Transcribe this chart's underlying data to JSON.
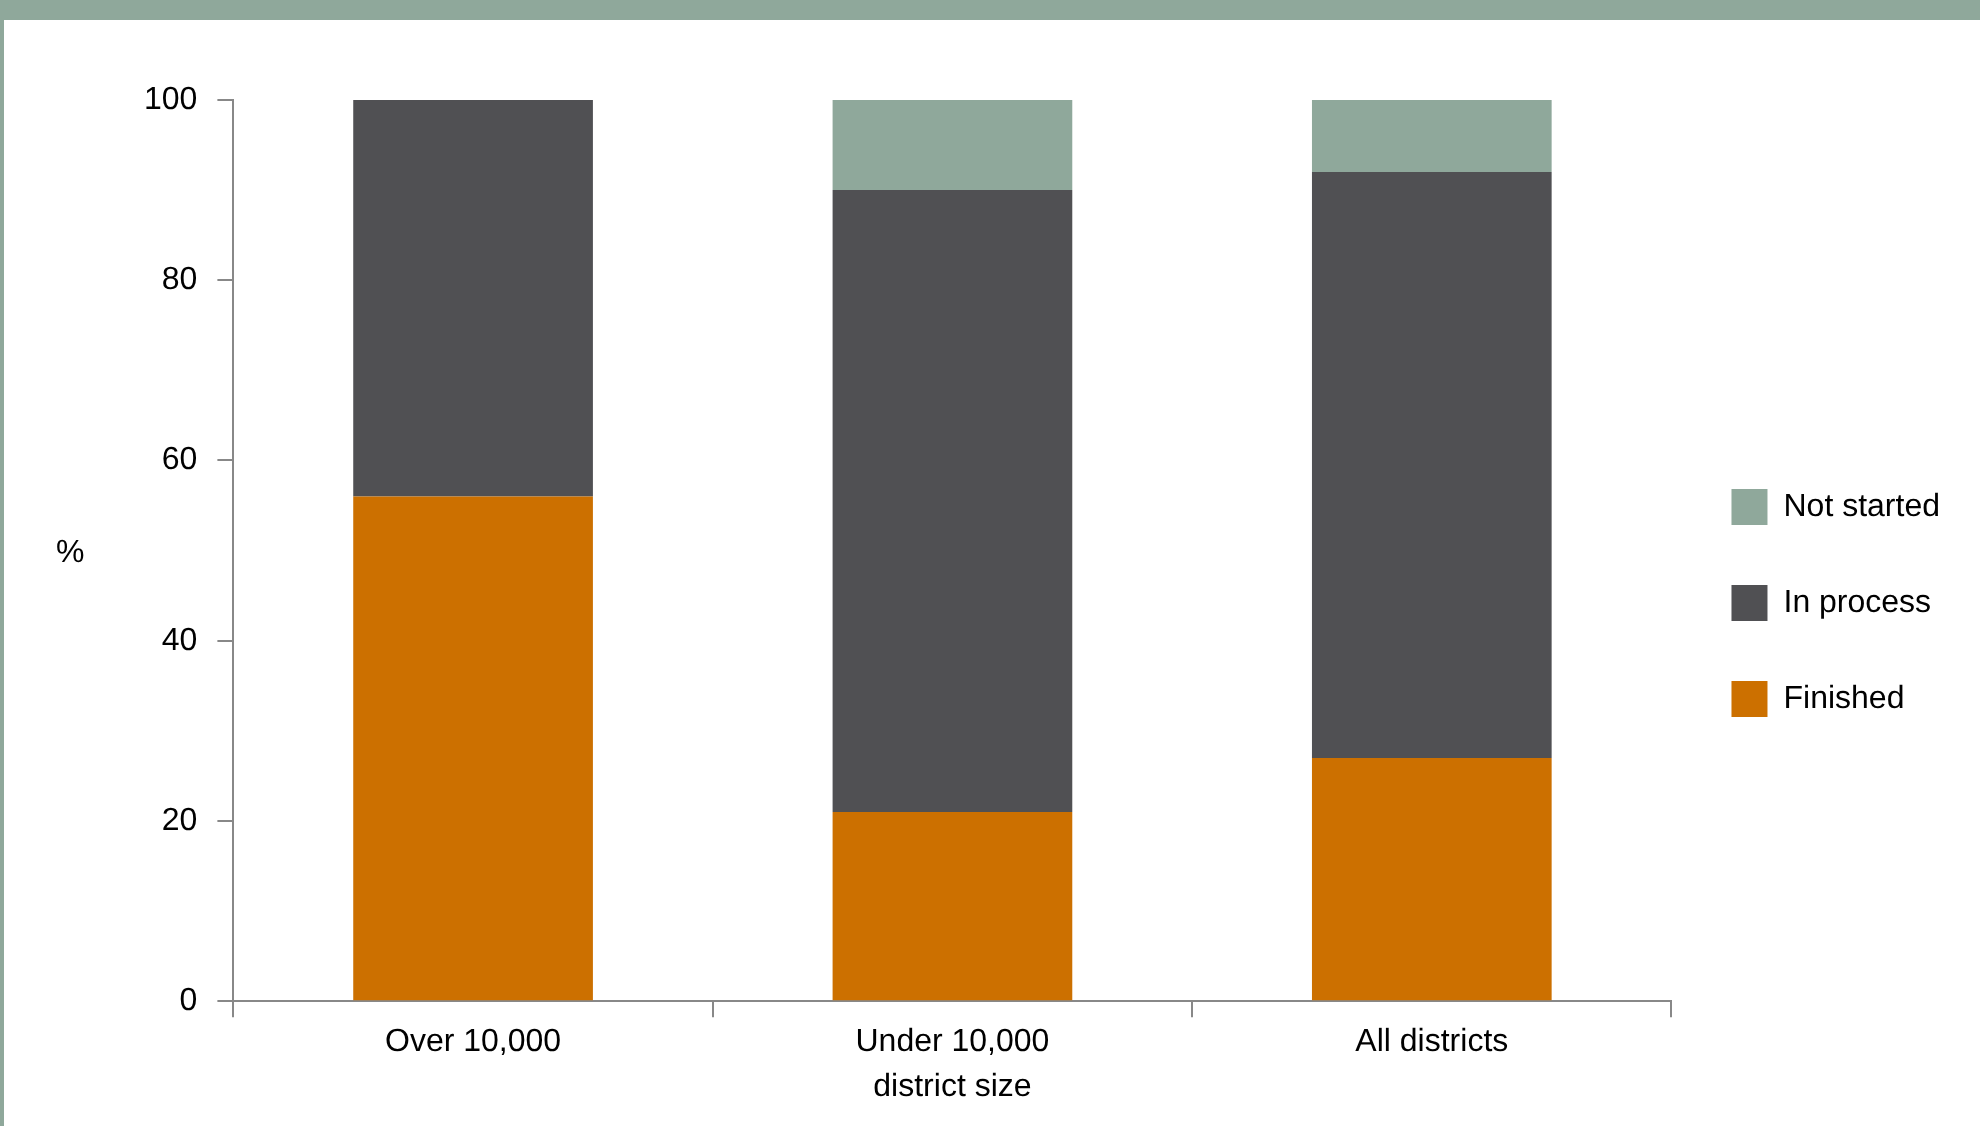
{
  "chart_data": {
    "type": "bar",
    "stacked": true,
    "xlabel": "district size",
    "ylabel": "%",
    "categories": [
      "Over 10,000",
      "Under 10,000",
      "All districts"
    ],
    "series": [
      {
        "name": "Finished",
        "color": "#cc7000",
        "values": [
          56,
          21,
          27
        ]
      },
      {
        "name": "In process",
        "color": "#505053",
        "values": [
          44,
          69,
          65
        ]
      },
      {
        "name": "Not started",
        "color": "#8fa89b",
        "values": [
          0,
          10,
          8
        ]
      }
    ],
    "ylim": [
      0,
      100
    ],
    "yticks": [
      0,
      20,
      40,
      60,
      80,
      100
    ],
    "grid": false,
    "legend": "right"
  }
}
